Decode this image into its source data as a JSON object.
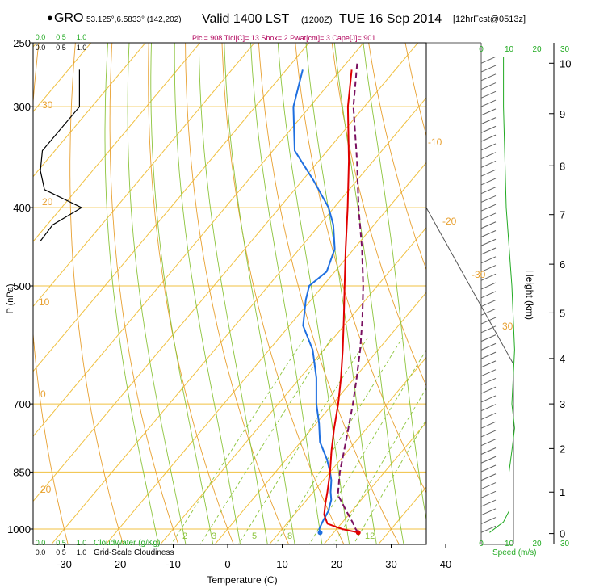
{
  "header": {
    "bullet": "●",
    "station": "GRO",
    "coords": "53.125°,6.5833° (142,202)",
    "valid": "Valid 1400 LST",
    "utc": "(1200Z)",
    "day": "TUE 16 Sep 2014",
    "forecast": "[12hrFcst@0513z]",
    "indices": "Plcl= 908 Tlcl[C]= 13 Shox= 2 Pwat[cm]= 3 Cape[J]= 901"
  },
  "colors": {
    "temperature": "#e00000",
    "dewpoint": "#1e6fe0",
    "parcel": "#7a1060",
    "isobar": "#f0c040",
    "adiabat": "#e8a030",
    "moist_adiabat": "#8cc43c",
    "mixing_ratio": "#8cc43c",
    "wind": "#606060",
    "speed_axis": "#22aa22",
    "cloud": "#000000"
  },
  "chart_data": {
    "type": "skew-t log-p",
    "xlabel": "Temperature (C)",
    "ylabel": "P (nPa)",
    "y2label": "Height (km)",
    "xlim": [
      -35,
      50
    ],
    "ylim": [
      1000,
      250
    ],
    "temp_ticks": [
      -30,
      -20,
      -10,
      0,
      10,
      20,
      30,
      40
    ],
    "pressure_ticks": [
      250,
      300,
      400,
      500,
      700,
      850,
      1000
    ],
    "height_ticks": [
      0,
      1,
      2,
      3,
      4,
      5,
      6,
      7,
      8,
      9,
      10
    ],
    "height_at_ticks_hpa": [
      1013,
      900,
      795,
      700,
      615,
      540,
      470,
      408,
      355,
      306,
      265
    ],
    "series": [
      {
        "key": "temperature",
        "p": [
          1010,
          1000,
          985,
          960,
          930,
          900,
          850,
          800,
          750,
          700,
          650,
          600,
          550,
          500,
          450,
          400,
          350,
          300,
          270
        ],
        "t": [
          24.5,
          21.0,
          17.5,
          15.5,
          14.0,
          12.6,
          10.0,
          7.0,
          4.0,
          1.0,
          -2.5,
          -6.5,
          -11.0,
          -16.0,
          -21.5,
          -27.5,
          -34.5,
          -43.0,
          -48.0
        ]
      },
      {
        "key": "dewpoint",
        "p": [
          1010,
          1000,
          980,
          950,
          920,
          900,
          870,
          850,
          820,
          780,
          740,
          700,
          650,
          600,
          560,
          520,
          500,
          480,
          450,
          420,
          400,
          370,
          340,
          300,
          270
        ],
        "t": [
          17.5,
          16.8,
          16.3,
          15.7,
          14.5,
          13.2,
          11.5,
          10.0,
          7.5,
          3.5,
          0.5,
          -3.0,
          -7.0,
          -12.0,
          -17.5,
          -21.0,
          -22.5,
          -21.5,
          -23.5,
          -27.5,
          -31.0,
          -38.0,
          -46.0,
          -53.0,
          -57.0
        ]
      },
      {
        "key": "parcel",
        "p": [
          1010,
          1000,
          980,
          950,
          920,
          908,
          850,
          800,
          750,
          700,
          650,
          600,
          550,
          500,
          450,
          400,
          350,
          300,
          265
        ],
        "t": [
          24.5,
          23.5,
          21.8,
          19.0,
          16.2,
          15.0,
          11.8,
          9.3,
          6.6,
          3.7,
          0.4,
          -3.3,
          -7.6,
          -12.6,
          -18.5,
          -25.5,
          -33.0,
          -42.0,
          -48.0
        ]
      }
    ],
    "surface_marker": {
      "temperature": 24.5,
      "dewpoint": 17.5
    },
    "dry_adiabat_labels": [
      "30",
      "20",
      "10",
      "0",
      "-10",
      "-20",
      "-30",
      "20",
      "30"
    ],
    "moist_adiabat_labels": [
      "2",
      "3",
      "5",
      "8",
      "12"
    ],
    "cloud_water_ticks": [
      "0.0",
      "0.5",
      "1.0"
    ],
    "cloud_water_label": "CloudWater (g/Kg)",
    "cloudiness_ticks": [
      "0.0",
      "0.5",
      "1.0"
    ],
    "cloudiness_label": "Grid-Scale Cloudiness",
    "cloud_water_profile": {
      "p": [
        270,
        300,
        340,
        360,
        380,
        400,
        420,
        440
      ],
      "v": [
        0.95,
        0.95,
        0.05,
        0.0,
        0.1,
        1.0,
        0.3,
        0.0
      ]
    },
    "speed_ticks": [
      0,
      10,
      20,
      30
    ],
    "speed_label": "Speed (m/s)",
    "wind_speed": {
      "p": [
        1010,
        980,
        950,
        900,
        850,
        800,
        750,
        700,
        600,
        500,
        400,
        300,
        260
      ],
      "v": [
        3,
        8,
        10,
        10,
        10,
        11,
        12,
        11,
        12,
        11,
        9,
        8,
        8
      ]
    },
    "wind_barbs": {
      "count": 55
    }
  }
}
